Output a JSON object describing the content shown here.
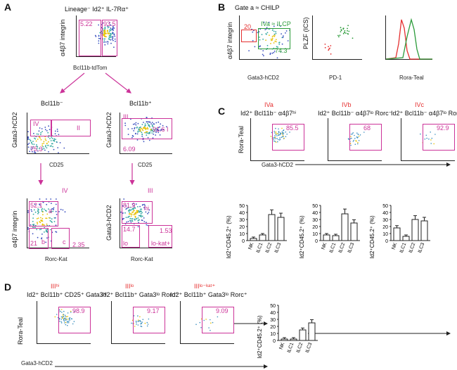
{
  "panels": {
    "A": {
      "label": "A",
      "top_title": "Lineage⁻ Id2⁺ IL-7Rα⁺",
      "top_y": "α4β7 integrin",
      "top_x": "Bcl11b-tdTom",
      "top_gate_left": "5.22",
      "top_gate_right": "93.5",
      "branch_left": "Bcl11b⁻",
      "branch_right": "Bcl11b⁺",
      "mid_left": {
        "y": "Gata3-hCD2",
        "x": "CD25",
        "g1": "IV",
        "g2": "II",
        "g3": "75.3"
      },
      "mid_right": {
        "y": "Gata3-hCD2",
        "x": "CD25",
        "g1": "III",
        "g2": "91.6",
        "g3": "I",
        "g4": "6.09"
      },
      "bot_left": {
        "title": "IV",
        "y": "α4β7 integrin",
        "x": "Rorc-Kat",
        "a": "52.1",
        "b": "a",
        "c": "21",
        "d": "b",
        "e": "c",
        "f": "2.35"
      },
      "bot_right": {
        "title": "III",
        "y": "Gata3-hCD2",
        "x": "Rorc-Kat",
        "a": "81.9",
        "b": "hi",
        "c": "14.7",
        "d": "1.53",
        "e": "lo",
        "f": "lo-kat+"
      }
    },
    "B": {
      "label": "B",
      "title": "Gate a ≈ CHILP",
      "p1": {
        "y": "α4β7 integrin",
        "x": "Gata3-hCD2",
        "g1": "20",
        "g2": "IVa ≈ ILCP",
        "g3": "74.3"
      },
      "p2": {
        "y": "PLZF (ICS)",
        "x": "PD-1"
      },
      "p3": {
        "x": "Rora-Teal"
      }
    },
    "C": {
      "label": "C",
      "heads": [
        {
          "tag": "IVa",
          "desc": "Id2⁺ Bcl11b⁻ α4β7ʰⁱ",
          "val": "85.5"
        },
        {
          "tag": "IVb",
          "desc": "Id2⁺ Bcl11b⁻ α4β7ˡᵒ Rorc⁻",
          "val": "68"
        },
        {
          "tag": "IVc",
          "desc": "Id2⁺ Bcl11b⁻ α4β7ˡᵒ Rorc⁺",
          "val": "92.9"
        }
      ],
      "y": "Rora-Teal",
      "x": "Gata3-hCD2",
      "bar_ylabel": "Id2⁺CD45.2⁺ (%)"
    },
    "D": {
      "label": "D",
      "heads": [
        {
          "tag": "IIIʰⁱ",
          "desc": "Id2⁺ Bcl11b⁺ CD25⁺ Gata3ʰⁱ",
          "val": "98.9"
        },
        {
          "tag": "IIIˡᵒ",
          "desc": "Id2⁺ Bcl11b⁺ Gata3ˡᵒ Rorc⁻",
          "val": "9.17"
        },
        {
          "tag": "IIIˡᵒ⁻ᵏᵃᵗ⁺",
          "desc": "Id2⁺ Bcl11b⁺ Gata3ˡᵒ Rorc⁺",
          "val": "9.09"
        }
      ],
      "y": "Rora-Teal",
      "x": "Gata3-hCD2",
      "bar_ylabel": "Id2⁺CD45.2⁺ (%)"
    }
  },
  "ticks": {
    "axis": [
      "0",
      "10²",
      "10³",
      "10⁴",
      "10⁵"
    ],
    "yaxis": [
      "10³",
      "10⁴",
      "10⁵"
    ],
    "pct": [
      "0",
      "10",
      "20",
      "30",
      "40",
      "50"
    ]
  },
  "chart_data": [
    {
      "type": "bar",
      "categories": [
        "NK",
        "ILC1",
        "ILC2",
        "ILC3"
      ],
      "values": [
        3,
        8,
        37,
        33
      ],
      "ylabel": "Id2⁺CD45.2⁺ (%)",
      "ylim": [
        0,
        50
      ]
    },
    {
      "type": "bar",
      "categories": [
        "NK",
        "ILC1",
        "ILC2",
        "ILC3"
      ],
      "values": [
        8,
        7,
        38,
        25
      ],
      "ylabel": "Id2⁺CD45.2⁺ (%)",
      "ylim": [
        0,
        50
      ]
    },
    {
      "type": "bar",
      "categories": [
        "NK",
        "ILC1",
        "ILC2",
        "ILC3"
      ],
      "values": [
        18,
        6,
        30,
        28
      ],
      "ylabel": "Id2⁺CD45.2⁺ (%)",
      "ylim": [
        0,
        50
      ]
    },
    {
      "type": "bar",
      "categories": [
        "NK",
        "ILC1",
        "ILC2",
        "ILC3"
      ],
      "values": [
        2,
        2,
        15,
        25
      ],
      "ylabel": "Id2⁺CD45.2⁺ (%)",
      "ylim": [
        0,
        50
      ]
    }
  ]
}
